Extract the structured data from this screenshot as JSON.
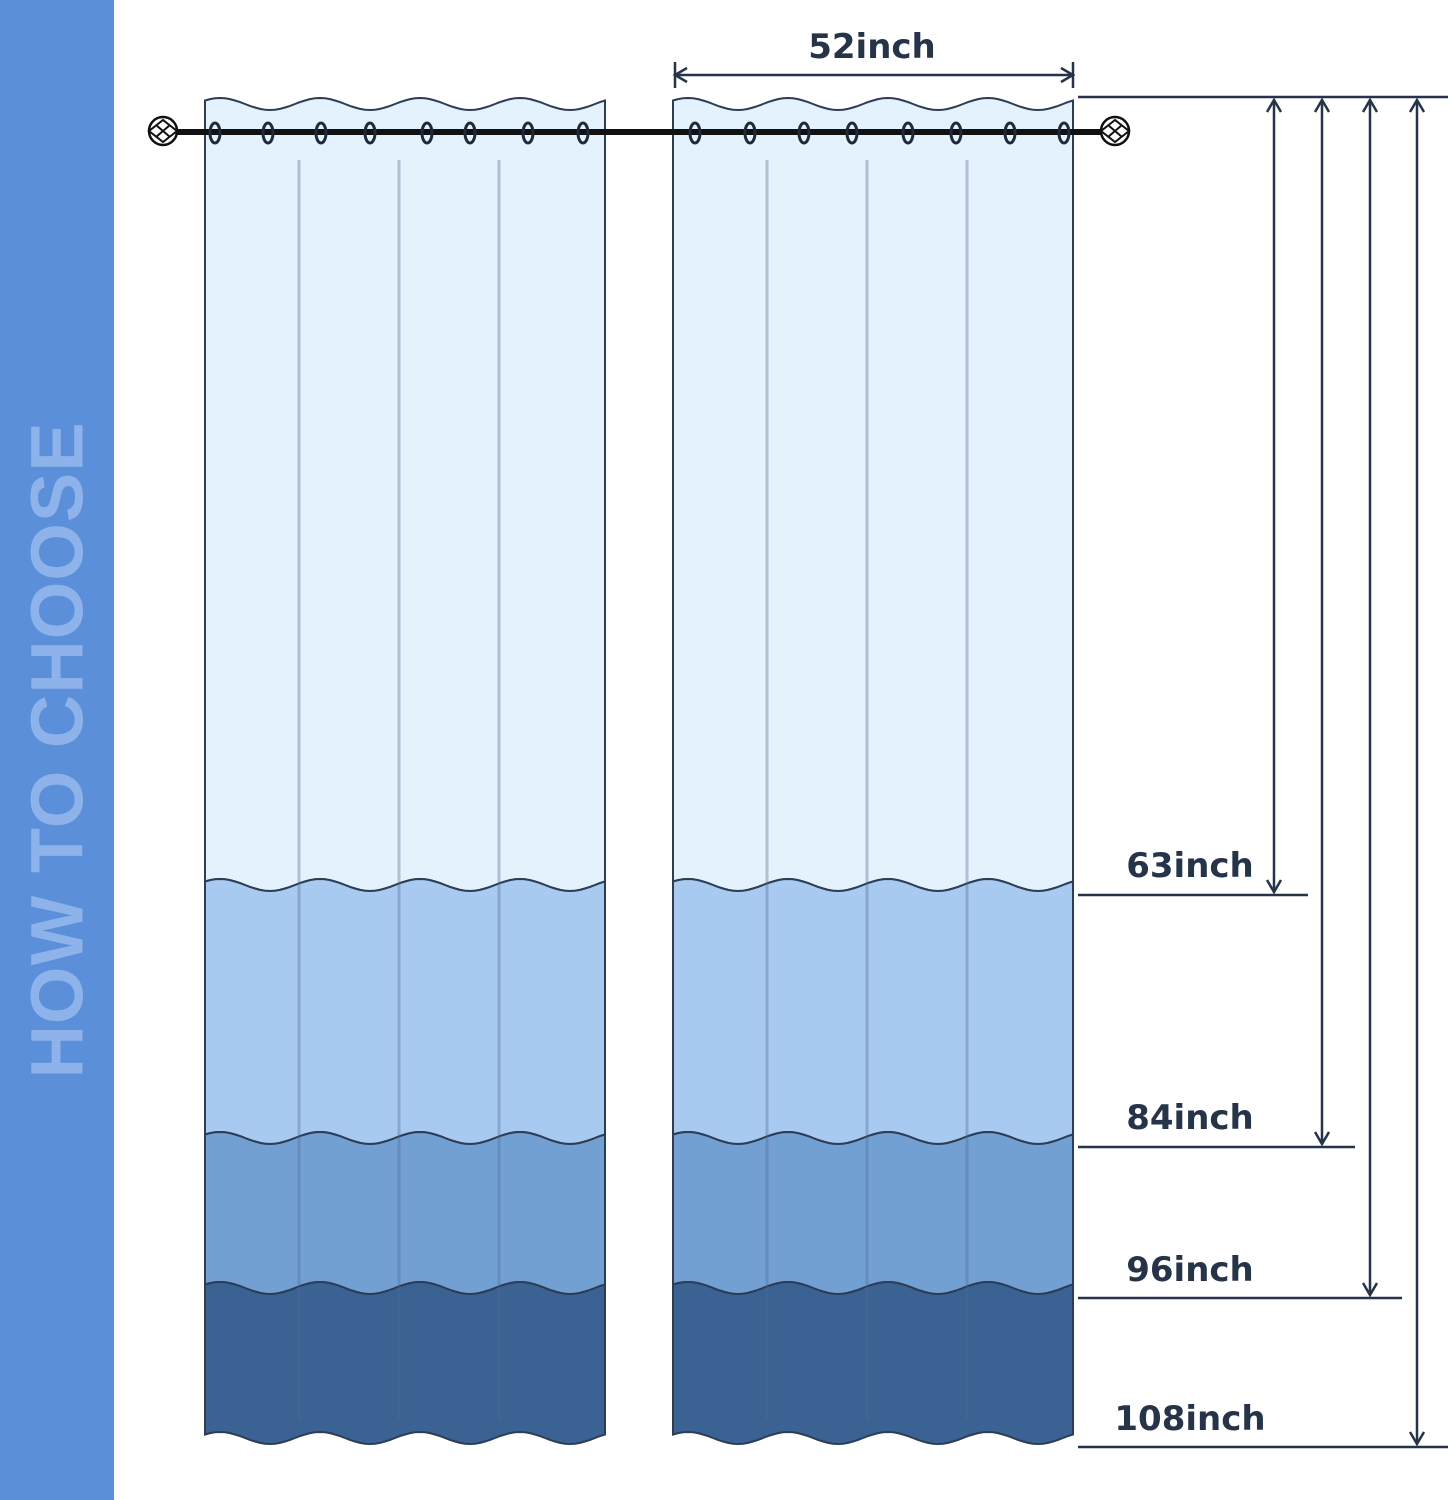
{
  "sidebar": {
    "title": "HOW TO CHOOSE",
    "color": "#5b8fd9"
  },
  "width_label": "52inch",
  "lengths": [
    {
      "label": "63inch",
      "value": 63
    },
    {
      "label": "84inch",
      "value": 84
    },
    {
      "label": "96inch",
      "value": 96
    },
    {
      "label": "108inch",
      "value": 108
    }
  ],
  "colors": {
    "layer1": "#e4f2fd",
    "layer2": "#a8c9f0",
    "layer3": "#73a0d3",
    "layer4": "#3a6394",
    "outline": "#2c3d55"
  }
}
